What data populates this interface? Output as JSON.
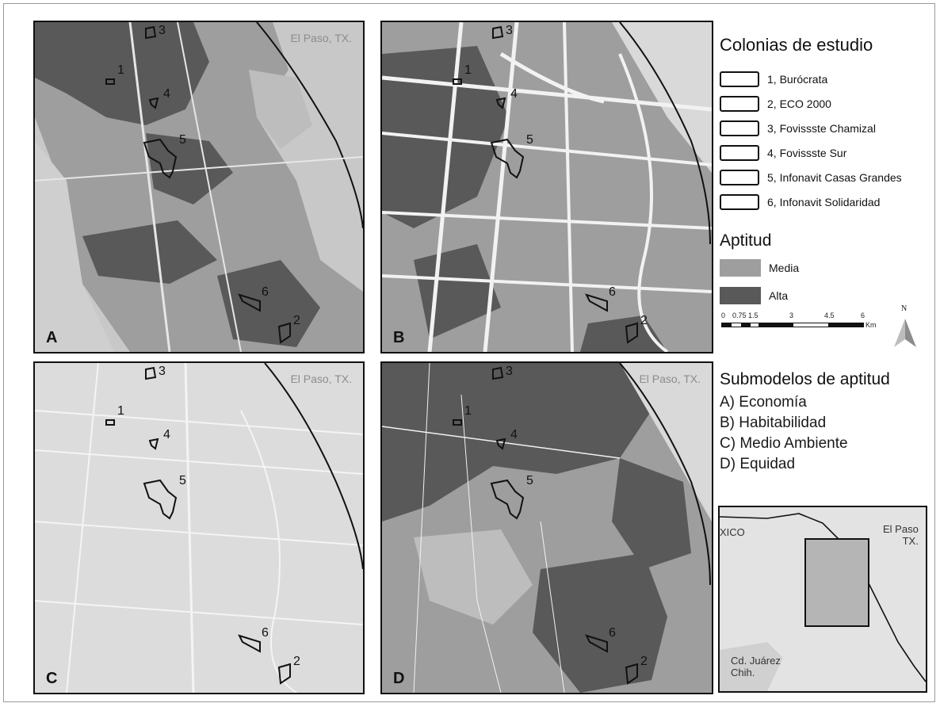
{
  "panels": [
    {
      "letter": "A",
      "city": "El Paso, TX."
    },
    {
      "letter": "B",
      "city": ""
    },
    {
      "letter": "C",
      "city": "El Paso, TX."
    },
    {
      "letter": "D",
      "city": "El Paso, TX."
    }
  ],
  "colonia_numbers": [
    "1",
    "2",
    "3",
    "4",
    "5",
    "6"
  ],
  "legend": {
    "title": "Colonias de estudio",
    "colonias": [
      "1, Burócrata",
      "2, ECO 2000",
      "3, Fovissste Chamizal",
      "4, Fovissste Sur",
      "5, Infonavit Casas Grandes",
      "6, Infonavit Solidaridad"
    ],
    "aptitud_title": "Aptitud",
    "aptitud": [
      {
        "label": "Media",
        "color": "#9e9e9e"
      },
      {
        "label": "Alta",
        "color": "#595959"
      }
    ]
  },
  "scale": {
    "ticks": [
      "0",
      "0.75",
      "1.5",
      "3",
      "4.5",
      "6"
    ],
    "unit": "Km"
  },
  "north_label": "N",
  "submodelos": {
    "title": "Submodelos de aptitud",
    "items": [
      "A) Economía",
      "B) Habitabilidad",
      "C) Medio Ambiente",
      "D) Equidad"
    ]
  },
  "inset": {
    "mexico": "XICO",
    "el_paso": [
      "El Paso",
      "TX."
    ],
    "juarez": [
      "Cd. Juárez",
      "Chih."
    ]
  },
  "colors": {
    "base": "#d9d9d9",
    "media": "#9e9e9e",
    "alta": "#595959",
    "road": "#f2f2f2"
  }
}
